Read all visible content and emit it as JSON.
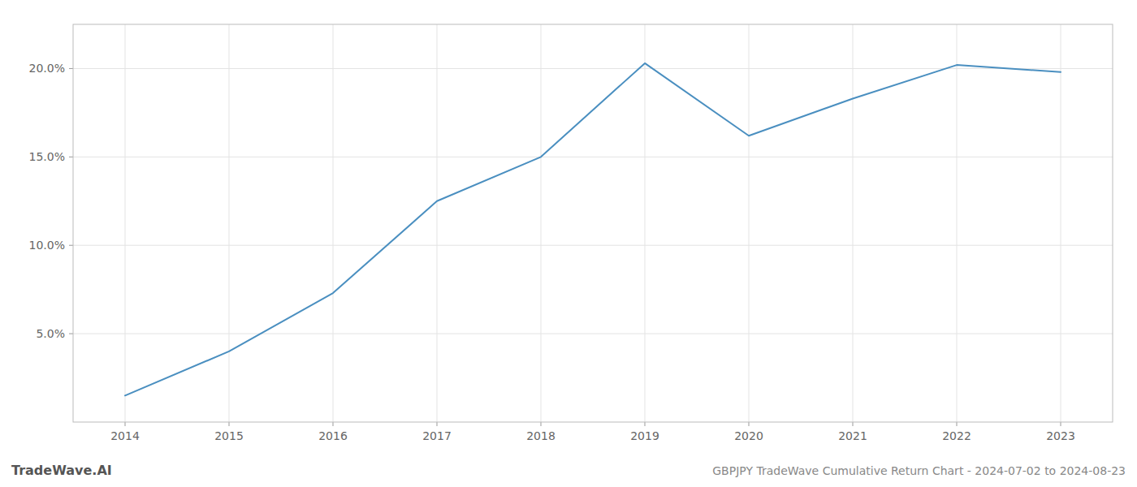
{
  "chart_data": {
    "type": "line",
    "title": "GBPJPY TradeWave Cumulative Return Chart - 2024-07-02 to 2024-08-23",
    "annotations": [
      "TradeWave.AI"
    ],
    "x": [
      2014,
      2015,
      2016,
      2017,
      2018,
      2019,
      2020,
      2021,
      2022,
      2023
    ],
    "values": [
      1.5,
      4.0,
      7.3,
      12.5,
      15.0,
      20.3,
      16.2,
      18.3,
      20.2,
      19.8
    ],
    "color": "#4a8fc0",
    "xlim": [
      2013.5,
      2023.5
    ],
    "xticks": [
      2014,
      2015,
      2016,
      2017,
      2018,
      2019,
      2020,
      2021,
      2022,
      2023
    ],
    "ylim": [
      0,
      22.5
    ],
    "yticks": [
      {
        "value": 5.0,
        "label": "5.0%"
      },
      {
        "value": 10.0,
        "label": "10.0%"
      },
      {
        "value": 15.0,
        "label": "15.0%"
      },
      {
        "value": 20.0,
        "label": "20.0%"
      }
    ],
    "grid": true
  }
}
